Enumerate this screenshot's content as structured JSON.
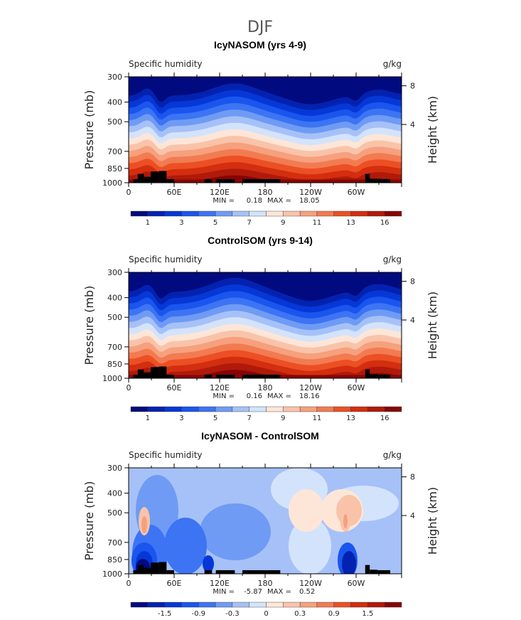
{
  "chart_data": {
    "type": "heatmap",
    "title": "DJF",
    "panels": [
      {
        "title": "IcyNASOM (yrs 4-9)",
        "left_label": "Specific humidity",
        "right_label": "g/kg",
        "ylabel": "Pressure (mb)",
        "ylabel_right": "Height (km)",
        "yticks": [
          "300",
          "400",
          "500",
          "700",
          "850",
          "1000"
        ],
        "yticks_right": [
          "8",
          "4"
        ],
        "xticks": [
          "0",
          "60E",
          "120E",
          "180",
          "120W",
          "60W"
        ],
        "min_label": "MIN =",
        "min": "0.18",
        "max_label": "MAX =",
        "max": "18.05",
        "colorbar_labels": [
          "1",
          "3",
          "5",
          "7",
          "9",
          "11",
          "13",
          "16"
        ],
        "kind": "absolute"
      },
      {
        "title": "ControlSOM (yrs 9-14)",
        "left_label": "Specific humidity",
        "right_label": "g/kg",
        "ylabel": "Pressure (mb)",
        "ylabel_right": "Height (km)",
        "yticks": [
          "300",
          "400",
          "500",
          "700",
          "850",
          "1000"
        ],
        "yticks_right": [
          "8",
          "4"
        ],
        "xticks": [
          "0",
          "60E",
          "120E",
          "180",
          "120W",
          "60W"
        ],
        "min_label": "MIN =",
        "min": "0.16",
        "max_label": "MAX =",
        "max": "18.16",
        "colorbar_labels": [
          "1",
          "3",
          "5",
          "7",
          "9",
          "11",
          "13",
          "16"
        ],
        "kind": "absolute"
      },
      {
        "title": "IcyNASOM - ControlSOM",
        "left_label": "Specific humidity",
        "right_label": "g/kg",
        "ylabel": "Pressure (mb)",
        "ylabel_right": "Height (km)",
        "yticks": [
          "300",
          "400",
          "500",
          "700",
          "850",
          "1000"
        ],
        "yticks_right": [
          "8",
          "4"
        ],
        "xticks": [
          "0",
          "60E",
          "120E",
          "180",
          "120W",
          "60W"
        ],
        "min_label": "MIN =",
        "min": "-5.87",
        "max_label": "MAX =",
        "max": "0.52",
        "colorbar_labels": [
          "-1.5",
          "-0.9",
          "-0.3",
          "0",
          "0.3",
          "0.9",
          "1.5"
        ],
        "kind": "difference"
      }
    ],
    "colors": [
      "#020a80",
      "#0322b0",
      "#0538d6",
      "#1a55ee",
      "#3c74f3",
      "#6f9bf4",
      "#a6c1f7",
      "#d3e3fb",
      "#fde6d8",
      "#f9c3aa",
      "#f6a07e",
      "#f27b52",
      "#ec4f24",
      "#d32e10",
      "#b01a0a",
      "#880404"
    ]
  }
}
